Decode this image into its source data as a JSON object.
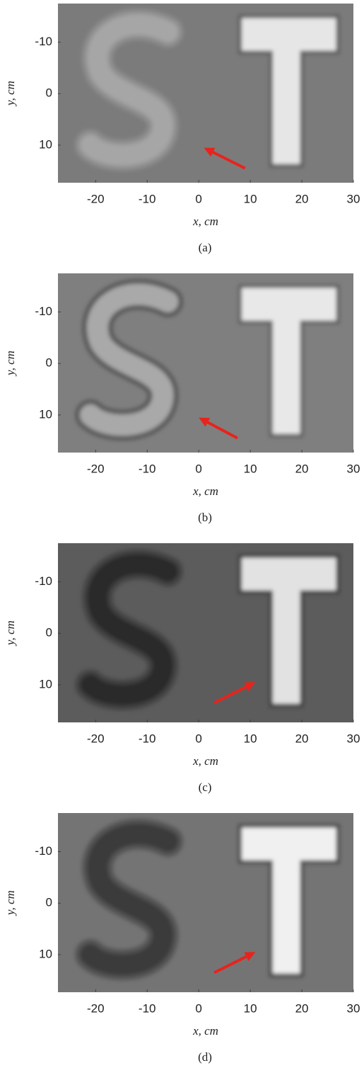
{
  "chart_data": [
    {
      "type": "image",
      "caption": "(a)",
      "xlabel": "x, cm",
      "ylabel": "y, cm",
      "xlim": [
        -27.3,
        30
      ],
      "ylim": [
        -17.5,
        17.3
      ],
      "y_reversed": true,
      "xticks": [
        -20,
        -10,
        0,
        10,
        20,
        30
      ],
      "yticks": [
        -10,
        0,
        10
      ],
      "grid": false
    },
    {
      "type": "image",
      "caption": "(b)",
      "xlabel": "x, cm",
      "ylabel": "y, cm",
      "xlim": [
        -27.3,
        30
      ],
      "ylim": [
        -17.5,
        17.3
      ],
      "y_reversed": true,
      "xticks": [
        -20,
        -10,
        0,
        10,
        20,
        30
      ],
      "yticks": [
        -10,
        0,
        10
      ],
      "grid": false
    },
    {
      "type": "image",
      "caption": "(c)",
      "xlabel": "x, cm",
      "ylabel": "y, cm",
      "xlim": [
        -27.3,
        30
      ],
      "ylim": [
        -17.5,
        17.3
      ],
      "y_reversed": true,
      "xticks": [
        -20,
        -10,
        0,
        10,
        20,
        30
      ],
      "yticks": [
        -10,
        0,
        10
      ],
      "grid": false
    },
    {
      "type": "image",
      "caption": "(d)",
      "xlabel": "x, cm",
      "ylabel": "y, cm",
      "xlim": [
        -27.3,
        30
      ],
      "ylim": [
        -17.5,
        17.3
      ],
      "y_reversed": true,
      "xticks": [
        -20,
        -10,
        0,
        10,
        20,
        30
      ],
      "yticks": [
        -10,
        0,
        10
      ],
      "grid": false
    }
  ]
}
